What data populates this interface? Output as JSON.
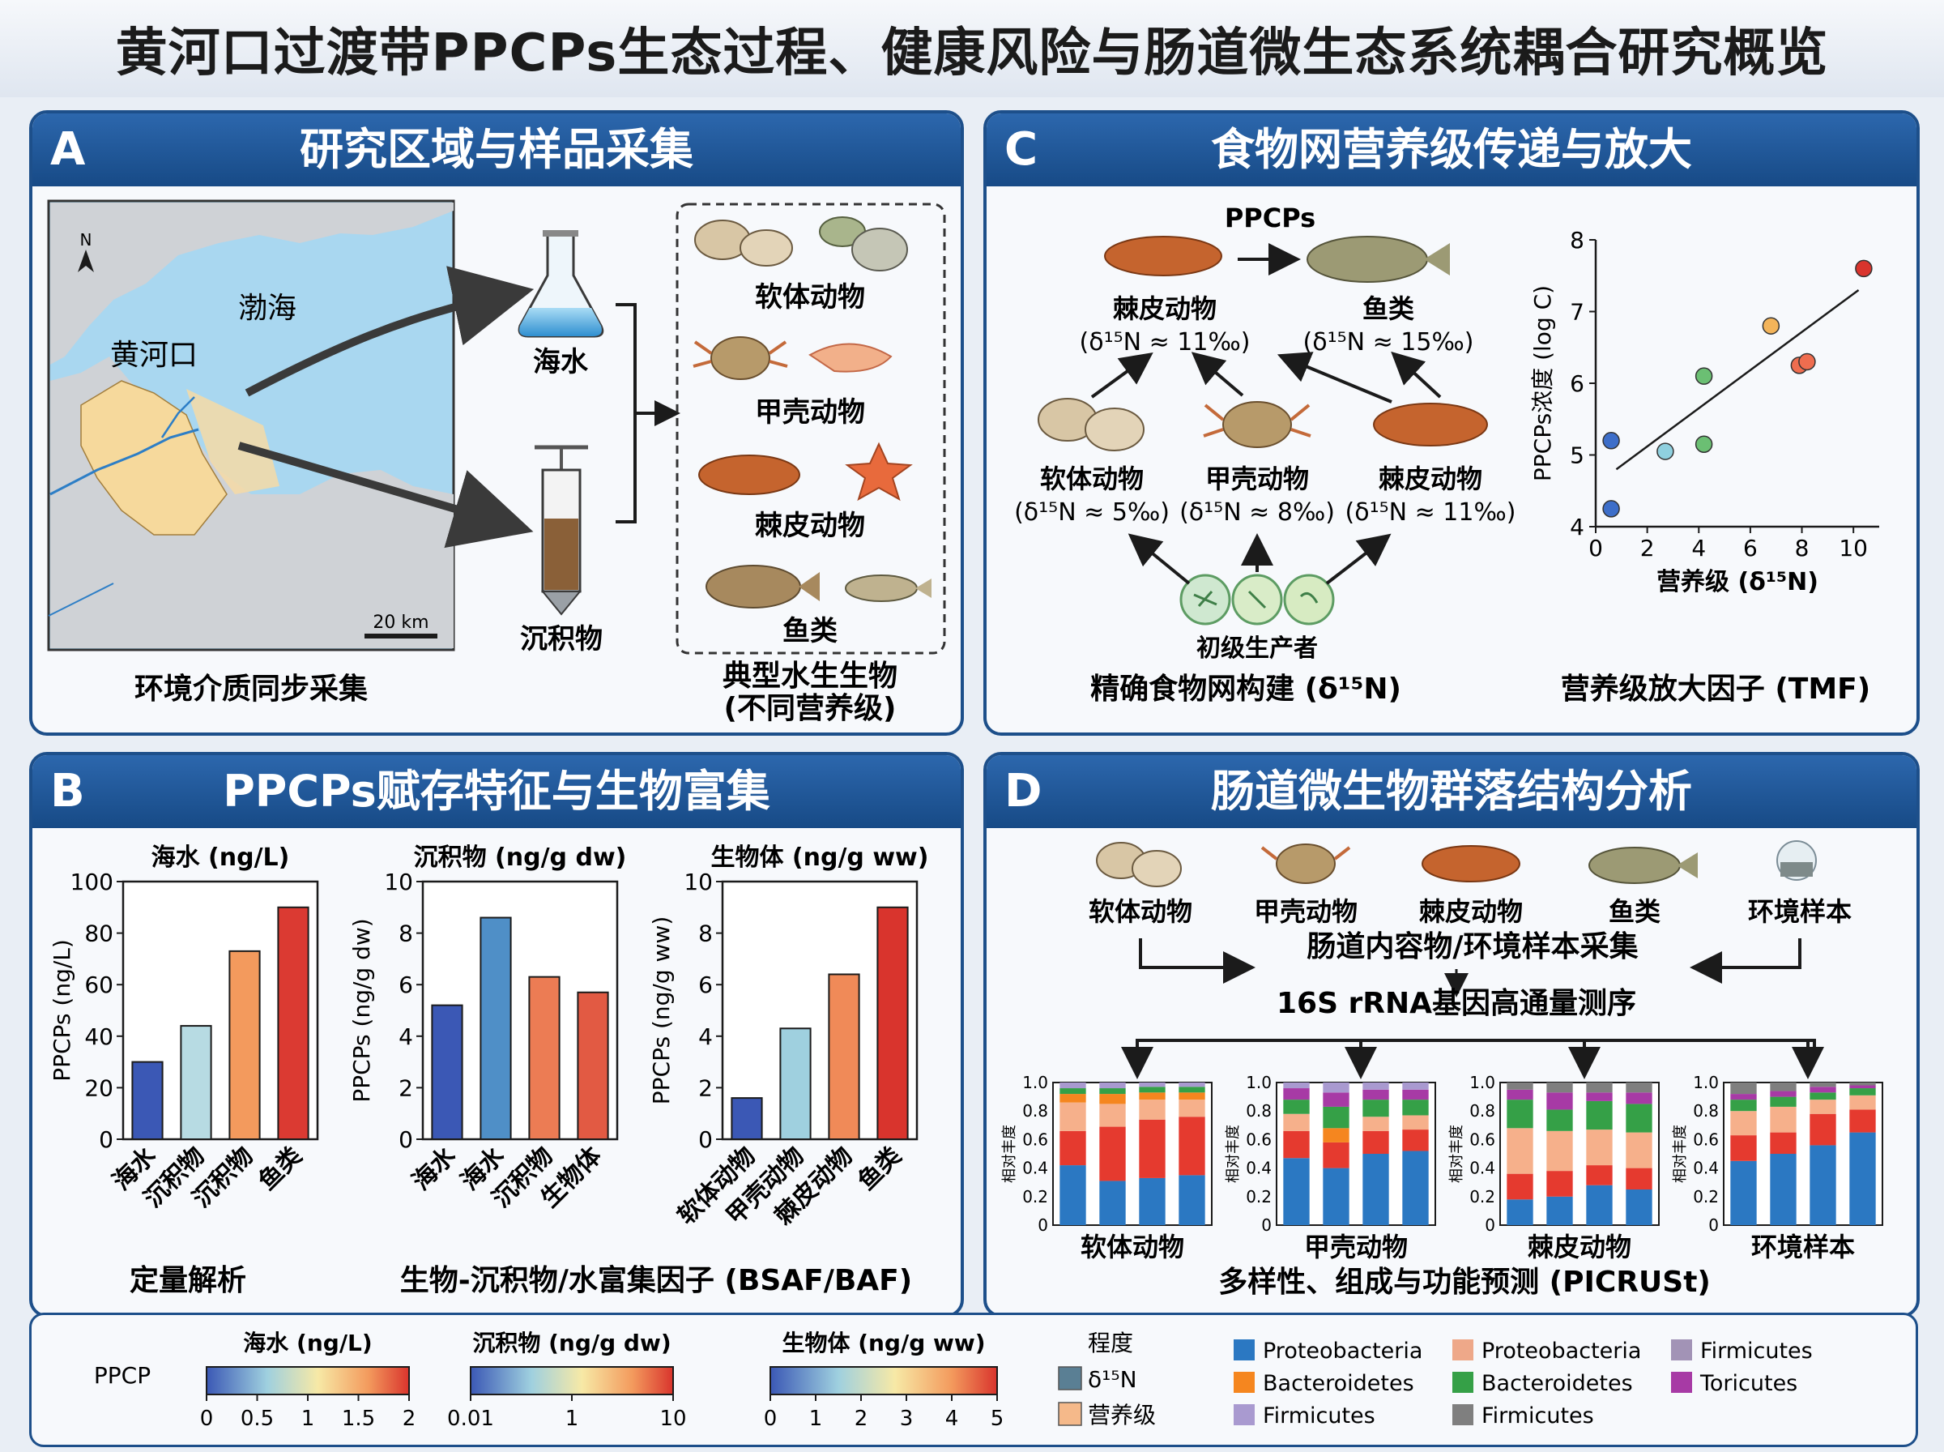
{
  "title": "黄河口过渡带PPCPs生态过程、健康风险与肠道微生态系统耦合研究概览",
  "panels": {
    "A": {
      "letter": "A",
      "title": "研究区域与样品采集",
      "map": {
        "north": "N",
        "sea": "渤海",
        "estuary": "黄河口",
        "scale": "20 km"
      },
      "media": [
        "海水",
        "沉积物"
      ],
      "organisms": [
        "软体动物",
        "甲壳动物",
        "棘皮动物",
        "鱼类"
      ],
      "caption_left": "环境介质同步采集",
      "caption_right_1": "典型水生生物",
      "caption_right_2": "(不同营养级)"
    },
    "B": {
      "letter": "B",
      "title": "PPCPs赋存特征与生物富集",
      "caption_left": "定量解析",
      "caption_right": "生物-沉积物/水富集因子 (BSAF/BAF)"
    },
    "C": {
      "letter": "C",
      "title": "食物网营养级传递与放大",
      "ppcps": "PPCPs",
      "nodes": {
        "echino_top": {
          "name": "棘皮动物",
          "iso": "(δ¹⁵N ≈ 11‰)"
        },
        "fish": {
          "name": "鱼类",
          "iso": "(δ¹⁵N ≈ 15‰)"
        },
        "mollusc": {
          "name": "软体动物",
          "iso": "(δ¹⁵N ≈ 5‰)"
        },
        "crust": {
          "name": "甲壳动物",
          "iso": "(δ¹⁵N ≈ 8‰)"
        },
        "echino_mid": {
          "name": "棘皮动物",
          "iso": "(δ¹⁵N ≈ 11‰)"
        },
        "producer": {
          "name": "初级生产者"
        }
      },
      "caption_left": "精确食物网构建 (δ¹⁵N)",
      "caption_right": "营养级放大因子 (TMF)"
    },
    "D": {
      "letter": "D",
      "title": "肠道微生物群落结构分析",
      "sources": [
        "软体动物",
        "甲壳动物",
        "棘皮动物",
        "鱼类",
        "环境样本"
      ],
      "step1": "肠道内容物/环境样本采集",
      "step2": "16S rRNA基因高通量测序",
      "ylabel": "相对丰度",
      "groups": [
        "软体动物",
        "甲壳动物",
        "棘皮动物",
        "环境样本"
      ],
      "caption": "多样性、组成与功能预测 (PICRUSt)"
    }
  },
  "legend": {
    "ppcp_label": "PPCP",
    "bars": [
      {
        "title": "海水 (ng/L)",
        "ticks": [
          "0",
          "0.5",
          "1",
          "1.5",
          "2"
        ]
      },
      {
        "title": "沉积物 (ng/g dw)",
        "ticks": [
          "0.01",
          "1",
          "10"
        ]
      },
      {
        "title": "生物体 (ng/g ww)",
        "ticks": [
          "0",
          "1",
          "2",
          "3",
          "4",
          "5"
        ]
      }
    ],
    "degree_title": "程度",
    "degree_items": [
      {
        "label": "δ¹⁵N",
        "color": "#5a7f94"
      },
      {
        "label": "营养级",
        "color": "#f5b98a"
      }
    ],
    "taxa": [
      {
        "label": "Proteobacteria",
        "color": "#2b78c2"
      },
      {
        "label": "Proteobacteria",
        "color": "#eea889"
      },
      {
        "label": "Firmicutes",
        "color": "#a293b6"
      },
      {
        "label": "Bacteroidetes",
        "color": "#f5861f"
      },
      {
        "label": "Bacteroidetes",
        "color": "#35a047"
      },
      {
        "label": "Toricutes",
        "color": "#a73aa5"
      },
      {
        "label": "Firmicutes",
        "color": "#a99ad0"
      },
      {
        "label": "Firmicutes",
        "color": "#7f7f7f"
      }
    ]
  },
  "chart_data": [
    {
      "type": "bar",
      "title": "海水 (ng/L)",
      "ylabel": "PPCPs (ng/L)",
      "ylim": [
        0,
        100
      ],
      "yticks": [
        0,
        20,
        40,
        60,
        80,
        100
      ],
      "categories": [
        "海水",
        "沉积物",
        "沉积物",
        "鱼类"
      ],
      "values": [
        30,
        44,
        73,
        90
      ],
      "colors": [
        "#3b58b5",
        "#b7dbe3",
        "#f39a5d",
        "#db3a32"
      ]
    },
    {
      "type": "bar",
      "title": "沉积物 (ng/g dw)",
      "ylabel": "PPCPs (ng/g dw)",
      "ylim": [
        0,
        10
      ],
      "yticks": [
        0,
        2,
        4,
        6,
        8,
        10
      ],
      "categories": [
        "海水",
        "海水",
        "沉积物",
        "生物体"
      ],
      "values": [
        5.2,
        8.6,
        6.3,
        5.7
      ],
      "colors": [
        "#3b58b5",
        "#4f8fc7",
        "#ec7c54",
        "#e25a43"
      ]
    },
    {
      "type": "bar",
      "title": "生物体 (ng/g ww)",
      "ylabel": "PPCPs (ng/g ww)",
      "ylim": [
        0,
        10
      ],
      "yticks": [
        0,
        2,
        4,
        6,
        8,
        10
      ],
      "categories": [
        "软体动物",
        "甲壳动物",
        "棘皮动物",
        "鱼类"
      ],
      "values": [
        1.6,
        4.3,
        6.4,
        9.0
      ],
      "colors": [
        "#3b58b5",
        "#9fd0df",
        "#f08a58",
        "#d9342d"
      ]
    },
    {
      "type": "scatter",
      "xlabel": "营养级 (δ¹⁵N)",
      "ylabel": "PPCPs浓度 (log C)",
      "xlim": [
        0,
        11
      ],
      "ylim": [
        4,
        8
      ],
      "xticks": [
        0,
        2,
        4,
        6,
        8,
        10
      ],
      "yticks": [
        4,
        5,
        6,
        7,
        8
      ],
      "points": [
        {
          "x": 0.6,
          "y": 5.2,
          "color": "#3d6ec9"
        },
        {
          "x": 0.6,
          "y": 4.25,
          "color": "#3d6ec9"
        },
        {
          "x": 2.7,
          "y": 5.05,
          "color": "#8fd0df"
        },
        {
          "x": 4.2,
          "y": 6.1,
          "color": "#6bbf73"
        },
        {
          "x": 4.2,
          "y": 5.15,
          "color": "#6bbf73"
        },
        {
          "x": 6.8,
          "y": 6.8,
          "color": "#f3b45a"
        },
        {
          "x": 7.9,
          "y": 6.25,
          "color": "#ef6d4f"
        },
        {
          "x": 8.2,
          "y": 6.3,
          "color": "#ef6d4f"
        },
        {
          "x": 10.4,
          "y": 7.6,
          "color": "#d9342d"
        }
      ],
      "fit": [
        [
          0.8,
          4.8
        ],
        [
          10.2,
          7.3
        ]
      ]
    },
    {
      "type": "bar",
      "stacked": true,
      "ylim": [
        0,
        1.0
      ],
      "yticks": [
        "0",
        "0.2",
        "0.4",
        "0.6",
        "0.8",
        "1.0"
      ],
      "groups": [
        {
          "name": "软体动物",
          "bars": [
            [
              {
                "v": 0.42,
                "c": "#2b78c2"
              },
              {
                "v": 0.24,
                "c": "#e53a2f"
              },
              {
                "v": 0.2,
                "c": "#f6b08b"
              },
              {
                "v": 0.06,
                "c": "#f5861f"
              },
              {
                "v": 0.04,
                "c": "#35a047"
              },
              {
                "v": 0.04,
                "c": "#a99ad0"
              }
            ],
            [
              {
                "v": 0.31,
                "c": "#2b78c2"
              },
              {
                "v": 0.38,
                "c": "#e53a2f"
              },
              {
                "v": 0.16,
                "c": "#f6b08b"
              },
              {
                "v": 0.07,
                "c": "#f5861f"
              },
              {
                "v": 0.04,
                "c": "#35a047"
              },
              {
                "v": 0.04,
                "c": "#a99ad0"
              }
            ],
            [
              {
                "v": 0.33,
                "c": "#2b78c2"
              },
              {
                "v": 0.41,
                "c": "#e53a2f"
              },
              {
                "v": 0.14,
                "c": "#f6b08b"
              },
              {
                "v": 0.05,
                "c": "#f5861f"
              },
              {
                "v": 0.04,
                "c": "#35a047"
              },
              {
                "v": 0.03,
                "c": "#a99ad0"
              }
            ],
            [
              {
                "v": 0.35,
                "c": "#2b78c2"
              },
              {
                "v": 0.41,
                "c": "#e53a2f"
              },
              {
                "v": 0.12,
                "c": "#f6b08b"
              },
              {
                "v": 0.05,
                "c": "#f5861f"
              },
              {
                "v": 0.04,
                "c": "#35a047"
              },
              {
                "v": 0.03,
                "c": "#a99ad0"
              }
            ]
          ]
        },
        {
          "name": "甲壳动物",
          "bars": [
            [
              {
                "v": 0.47,
                "c": "#2b78c2"
              },
              {
                "v": 0.19,
                "c": "#e53a2f"
              },
              {
                "v": 0.12,
                "c": "#f6b08b"
              },
              {
                "v": 0.1,
                "c": "#35a047"
              },
              {
                "v": 0.08,
                "c": "#a73aa5"
              },
              {
                "v": 0.04,
                "c": "#a99ad0"
              }
            ],
            [
              {
                "v": 0.4,
                "c": "#2b78c2"
              },
              {
                "v": 0.18,
                "c": "#e53a2f"
              },
              {
                "v": 0.1,
                "c": "#f5861f"
              },
              {
                "v": 0.15,
                "c": "#35a047"
              },
              {
                "v": 0.1,
                "c": "#a73aa5"
              },
              {
                "v": 0.07,
                "c": "#a99ad0"
              }
            ],
            [
              {
                "v": 0.5,
                "c": "#2b78c2"
              },
              {
                "v": 0.16,
                "c": "#e53a2f"
              },
              {
                "v": 0.1,
                "c": "#f6b08b"
              },
              {
                "v": 0.12,
                "c": "#35a047"
              },
              {
                "v": 0.07,
                "c": "#a73aa5"
              },
              {
                "v": 0.05,
                "c": "#a99ad0"
              }
            ],
            [
              {
                "v": 0.52,
                "c": "#2b78c2"
              },
              {
                "v": 0.15,
                "c": "#e53a2f"
              },
              {
                "v": 0.1,
                "c": "#f6b08b"
              },
              {
                "v": 0.11,
                "c": "#35a047"
              },
              {
                "v": 0.07,
                "c": "#a73aa5"
              },
              {
                "v": 0.05,
                "c": "#a99ad0"
              }
            ]
          ]
        },
        {
          "name": "棘皮动物",
          "bars": [
            [
              {
                "v": 0.18,
                "c": "#2b78c2"
              },
              {
                "v": 0.18,
                "c": "#e53a2f"
              },
              {
                "v": 0.32,
                "c": "#f6b08b"
              },
              {
                "v": 0.2,
                "c": "#35a047"
              },
              {
                "v": 0.07,
                "c": "#a73aa5"
              },
              {
                "v": 0.05,
                "c": "#7f7f7f"
              }
            ],
            [
              {
                "v": 0.2,
                "c": "#2b78c2"
              },
              {
                "v": 0.18,
                "c": "#e53a2f"
              },
              {
                "v": 0.28,
                "c": "#f6b08b"
              },
              {
                "v": 0.15,
                "c": "#35a047"
              },
              {
                "v": 0.12,
                "c": "#a73aa5"
              },
              {
                "v": 0.07,
                "c": "#7f7f7f"
              }
            ],
            [
              {
                "v": 0.28,
                "c": "#2b78c2"
              },
              {
                "v": 0.14,
                "c": "#e53a2f"
              },
              {
                "v": 0.25,
                "c": "#f6b08b"
              },
              {
                "v": 0.2,
                "c": "#35a047"
              },
              {
                "v": 0.06,
                "c": "#a73aa5"
              },
              {
                "v": 0.07,
                "c": "#7f7f7f"
              }
            ],
            [
              {
                "v": 0.25,
                "c": "#2b78c2"
              },
              {
                "v": 0.15,
                "c": "#e53a2f"
              },
              {
                "v": 0.25,
                "c": "#f6b08b"
              },
              {
                "v": 0.2,
                "c": "#35a047"
              },
              {
                "v": 0.08,
                "c": "#a73aa5"
              },
              {
                "v": 0.07,
                "c": "#7f7f7f"
              }
            ]
          ]
        },
        {
          "name": "环境样本",
          "bars": [
            [
              {
                "v": 0.45,
                "c": "#2b78c2"
              },
              {
                "v": 0.18,
                "c": "#e53a2f"
              },
              {
                "v": 0.17,
                "c": "#f6b08b"
              },
              {
                "v": 0.08,
                "c": "#35a047"
              },
              {
                "v": 0.04,
                "c": "#a73aa5"
              },
              {
                "v": 0.08,
                "c": "#7f7f7f"
              }
            ],
            [
              {
                "v": 0.5,
                "c": "#2b78c2"
              },
              {
                "v": 0.15,
                "c": "#e53a2f"
              },
              {
                "v": 0.18,
                "c": "#f6b08b"
              },
              {
                "v": 0.07,
                "c": "#35a047"
              },
              {
                "v": 0.04,
                "c": "#a73aa5"
              },
              {
                "v": 0.06,
                "c": "#7f7f7f"
              }
            ],
            [
              {
                "v": 0.56,
                "c": "#2b78c2"
              },
              {
                "v": 0.22,
                "c": "#e53a2f"
              },
              {
                "v": 0.1,
                "c": "#f6b08b"
              },
              {
                "v": 0.05,
                "c": "#35a047"
              },
              {
                "v": 0.04,
                "c": "#a73aa5"
              },
              {
                "v": 0.03,
                "c": "#7f7f7f"
              }
            ],
            [
              {
                "v": 0.65,
                "c": "#2b78c2"
              },
              {
                "v": 0.16,
                "c": "#e53a2f"
              },
              {
                "v": 0.1,
                "c": "#f6b08b"
              },
              {
                "v": 0.05,
                "c": "#35a047"
              },
              {
                "v": 0.02,
                "c": "#a73aa5"
              },
              {
                "v": 0.02,
                "c": "#7f7f7f"
              }
            ]
          ]
        }
      ]
    }
  ]
}
